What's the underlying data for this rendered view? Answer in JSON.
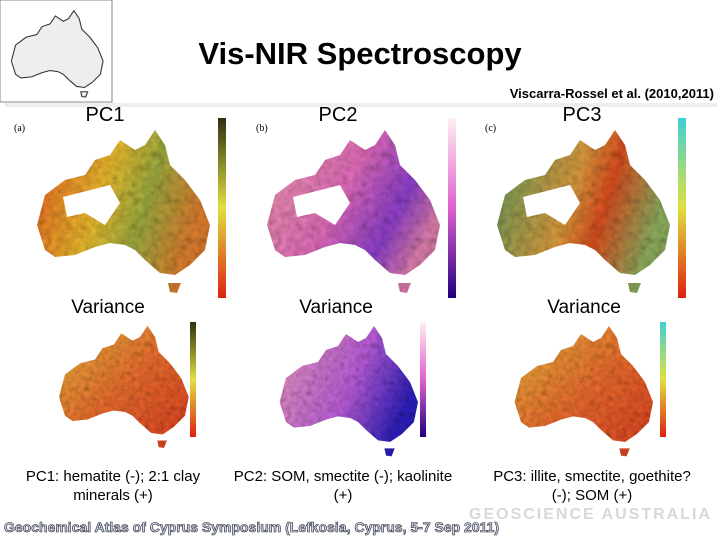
{
  "header": {
    "title": "Vis-NIR Spectroscopy",
    "citation": "Viscarra-Rossel et al. (2010,2011)"
  },
  "panels": [
    {
      "label": "PC1",
      "letter": "(a)",
      "variance": "Variance",
      "caption": "PC1: hematite (-); 2:1 clay minerals (+)"
    },
    {
      "label": "PC2",
      "letter": "(b)",
      "variance": "Variance",
      "caption": "PC2: SOM, smectite (-); kaolinite (+)"
    },
    {
      "label": "PC3",
      "letter": "(c)",
      "variance": "Variance",
      "caption": "PC3: illite, smectite, goethite? (-); SOM (+)"
    }
  ],
  "footer": {
    "text": "Geochemical Atlas of Cyprus Symposium (Lefkosia, Cyprus, 5-7 Sep 2011)",
    "logo": "GEOSCIENCE AUSTRALIA"
  }
}
